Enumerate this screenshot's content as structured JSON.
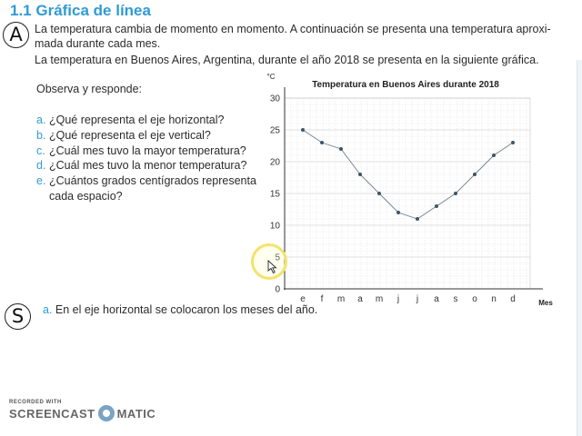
{
  "header": {
    "title": "1.1 Gráfica de línea",
    "letter": "A"
  },
  "intro": {
    "line1": "La temperatura cambia de momento en momento. A continuación se presenta una temperatura aproxi-",
    "line2": "mada durante cada mes.",
    "line3": "La temperatura en Buenos Aires, Argentina, durante el año 2018 se presenta en la siguiente gráfica."
  },
  "questions": {
    "prompt": "Observa y responde:",
    "items": [
      {
        "letter": "a.",
        "text": "¿Qué representa el eje horizontal?"
      },
      {
        "letter": "b.",
        "text": "¿Qué representa el eje vertical?"
      },
      {
        "letter": "c.",
        "text": "¿Cuál mes tuvo la mayor temperatura?"
      },
      {
        "letter": "d.",
        "text": "¿Cuál mes tuvo la menor temperatura?"
      },
      {
        "letter": "e.",
        "text": "¿Cuántos grados centígrados representa",
        "cont": "cada espacio?"
      }
    ]
  },
  "solution": {
    "letter": "S",
    "answer_letter": "a.",
    "answer_text": "En el eje horizontal se colocaron los meses del año."
  },
  "chart_data": {
    "type": "line",
    "title": "Temperatura en Buenos Aires durante 2018",
    "xlabel": "Mes",
    "ylabel": "°C",
    "categories": [
      "e",
      "f",
      "m",
      "a",
      "m",
      "j",
      "j",
      "a",
      "s",
      "o",
      "n",
      "d"
    ],
    "values": [
      25,
      23,
      22,
      18,
      15,
      12,
      11,
      13,
      15,
      18,
      21,
      23
    ],
    "ylim": [
      0,
      30
    ],
    "yticks": [
      0,
      5,
      10,
      15,
      20,
      25,
      30
    ],
    "grid": true,
    "line_color": "#6f7f8c",
    "point_color": "#3d5566"
  },
  "watermark": {
    "top": "RECORDED WITH",
    "left": "SCREENCAST",
    "right": "MATIC"
  }
}
